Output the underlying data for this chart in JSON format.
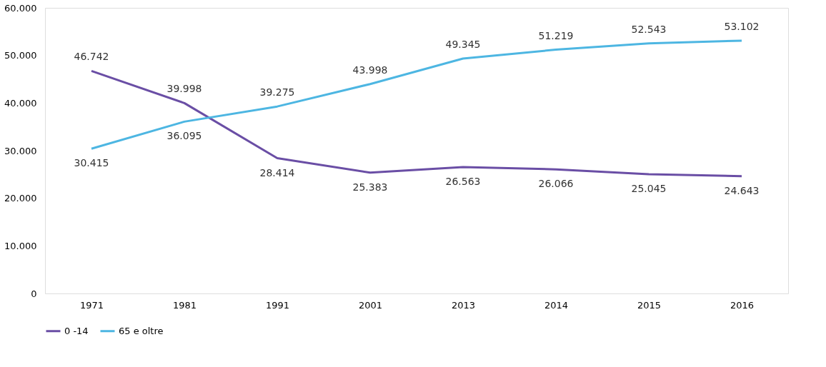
{
  "chart_data": {
    "type": "line",
    "categories": [
      "1971",
      "1981",
      "1991",
      "2001",
      "2013",
      "2014",
      "2015",
      "2016"
    ],
    "series": [
      {
        "name": "0 -14",
        "color": "#6a4ea5",
        "values": [
          46742,
          39998,
          28414,
          25383,
          26563,
          26066,
          25045,
          24643
        ],
        "value_labels": [
          "46.742",
          "39.998",
          "28.414",
          "25.383",
          "26.563",
          "26.066",
          "25.045",
          "24.643"
        ]
      },
      {
        "name": "65 e oltre",
        "color": "#4db6e2",
        "values": [
          30415,
          36095,
          39275,
          43998,
          49345,
          51219,
          52543,
          53102
        ],
        "value_labels": [
          "30.415",
          "36.095",
          "39.275",
          "43.998",
          "49.345",
          "51.219",
          "52.543",
          "53.102"
        ]
      }
    ],
    "ylim": [
      0,
      60000
    ],
    "yticks": [
      0,
      {
        "value": 10000,
        "label": "10.000"
      },
      {
        "value": 20000,
        "label": "20.000"
      },
      {
        "value": 30000,
        "label": "30.000"
      },
      {
        "value": 40000,
        "label": "40.000"
      },
      {
        "value": 50000,
        "label": "50.000"
      },
      {
        "value": 60000,
        "label": "60.000"
      }
    ],
    "grid": false,
    "legend": "bottom",
    "marker": "none",
    "line_style": "solid"
  }
}
